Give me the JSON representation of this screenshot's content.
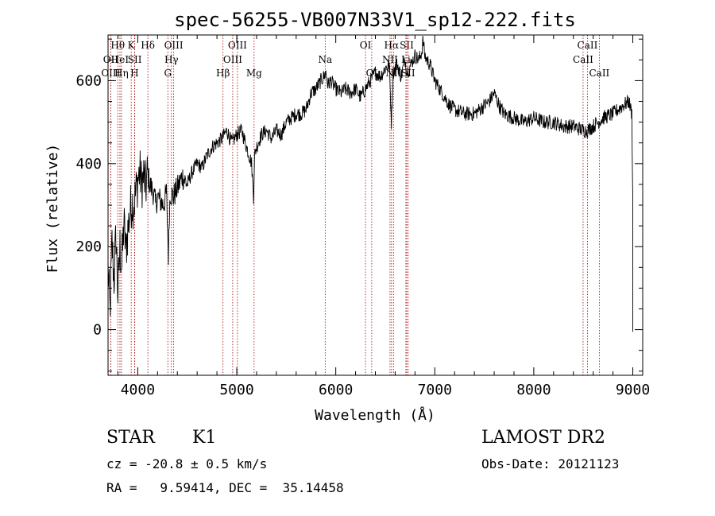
{
  "chart_data": {
    "type": "line",
    "title": "spec-56255-VB007N33V1_sp12-222.fits",
    "xlabel": "Wavelength (Å)",
    "ylabel": "Flux (relative)",
    "xlim": [
      3700,
      9100
    ],
    "ylim": [
      -110,
      710
    ],
    "x_ticks": [
      4000,
      5000,
      6000,
      7000,
      8000,
      9000
    ],
    "y_ticks": [
      0,
      200,
      400,
      600
    ],
    "grid": false,
    "series": [
      {
        "x": [
          3700,
          3720,
          3740,
          3760,
          3780,
          3800,
          3820,
          3840,
          3860,
          3880,
          3900,
          3920,
          3940,
          3960,
          3980,
          4000,
          4020,
          4040,
          4060,
          4080,
          4100,
          4120,
          4140,
          4160,
          4180,
          4200,
          4230,
          4260,
          4290,
          4310,
          4320,
          4330,
          4360,
          4400,
          4450,
          4500,
          4550,
          4600,
          4650,
          4700,
          4750,
          4800,
          4850,
          4900,
          4950,
          5000,
          5050,
          5100,
          5150,
          5170,
          5180,
          5200,
          5250,
          5300,
          5350,
          5400,
          5450,
          5500,
          5550,
          5600,
          5650,
          5700,
          5750,
          5800,
          5850,
          5880,
          5900,
          5920,
          5950,
          6000,
          6050,
          6100,
          6150,
          6200,
          6250,
          6300,
          6350,
          6400,
          6450,
          6500,
          6540,
          6562,
          6580,
          6620,
          6660,
          6700,
          6720,
          6760,
          6800,
          6840,
          6870,
          6880,
          6900,
          6920,
          6950,
          7000,
          7050,
          7100,
          7150,
          7200,
          7300,
          7400,
          7500,
          7550,
          7600,
          7650,
          7700,
          7800,
          7900,
          8000,
          8100,
          8200,
          8300,
          8400,
          8500,
          8540,
          8600,
          8700,
          8800,
          8900,
          8960,
          8990,
          9000
        ],
        "values": [
          150,
          40,
          210,
          120,
          230,
          80,
          200,
          150,
          260,
          190,
          240,
          280,
          310,
          300,
          330,
          360,
          380,
          350,
          370,
          340,
          380,
          350,
          340,
          330,
          300,
          320,
          310,
          300,
          330,
          180,
          290,
          330,
          320,
          340,
          370,
          350,
          380,
          400,
          390,
          420,
          440,
          450,
          460,
          480,
          450,
          470,
          480,
          440,
          400,
          320,
          420,
          440,
          470,
          480,
          460,
          480,
          470,
          500,
          510,
          520,
          520,
          530,
          570,
          580,
          600,
          610,
          620,
          590,
          600,
          580,
          570,
          580,
          570,
          580,
          560,
          580,
          600,
          620,
          610,
          630,
          640,
          500,
          620,
          640,
          610,
          650,
          620,
          640,
          660,
          650,
          670,
          700,
          660,
          650,
          640,
          600,
          580,
          560,
          540,
          530,
          520,
          520,
          540,
          550,
          570,
          540,
          520,
          510,
          500,
          510,
          500,
          500,
          490,
          490,
          480,
          480,
          490,
          510,
          520,
          540,
          550,
          520,
          320
        ],
        "noise": 18
      }
    ],
    "line_markers": [
      {
        "label": "Hθ",
        "x": 3798,
        "row": 0
      },
      {
        "label": "OII",
        "x": 3727,
        "row": 1
      },
      {
        "label": "OIII",
        "x": 3727,
        "row": 2
      },
      {
        "label": "HeI",
        "x": 3820,
        "row": 1
      },
      {
        "label": "Hη",
        "x": 3835,
        "row": 2
      },
      {
        "label": "K",
        "x": 3934,
        "row": 0
      },
      {
        "label": "SII",
        "x": 3970,
        "row": 1
      },
      {
        "label": "H",
        "x": 3968,
        "row": 2
      },
      {
        "label": "Hδ",
        "x": 4102,
        "row": 0
      },
      {
        "label": "OIII",
        "x": 4363,
        "row": 0
      },
      {
        "label": "Hγ",
        "x": 4340,
        "row": 1
      },
      {
        "label": "G",
        "x": 4304,
        "row": 2
      },
      {
        "label": "OIII",
        "x": 5007,
        "row": 0
      },
      {
        "label": "OIII",
        "x": 4959,
        "row": 1
      },
      {
        "label": "Hβ",
        "x": 4861,
        "row": 2
      },
      {
        "label": "Mg",
        "x": 5175,
        "row": 2
      },
      {
        "label": "Na",
        "x": 5893,
        "row": 1
      },
      {
        "label": "OI",
        "x": 6300,
        "row": 0
      },
      {
        "label": "OI",
        "x": 6363,
        "row": 2
      },
      {
        "label": "Hα",
        "x": 6563,
        "row": 0
      },
      {
        "label": "SII",
        "x": 6717,
        "row": 0
      },
      {
        "label": "NII",
        "x": 6548,
        "row": 1
      },
      {
        "label": "Li",
        "x": 6708,
        "row": 1
      },
      {
        "label": "NII",
        "x": 6583,
        "row": 2
      },
      {
        "label": "SII",
        "x": 6731,
        "row": 2
      },
      {
        "label": "CaII",
        "x": 8542,
        "row": 0
      },
      {
        "label": "CaII",
        "x": 8498,
        "row": 1
      },
      {
        "label": "CaII",
        "x": 8662,
        "row": 2
      }
    ]
  },
  "info": {
    "object_class": "STAR",
    "subclass": "K1",
    "survey": "LAMOST DR2",
    "redshift": "cz = -20.8 ± 0.5 km/s",
    "obs_date": "Obs-Date: 20121123",
    "coords": "RA =   9.59414, DEC =  35.14458"
  }
}
